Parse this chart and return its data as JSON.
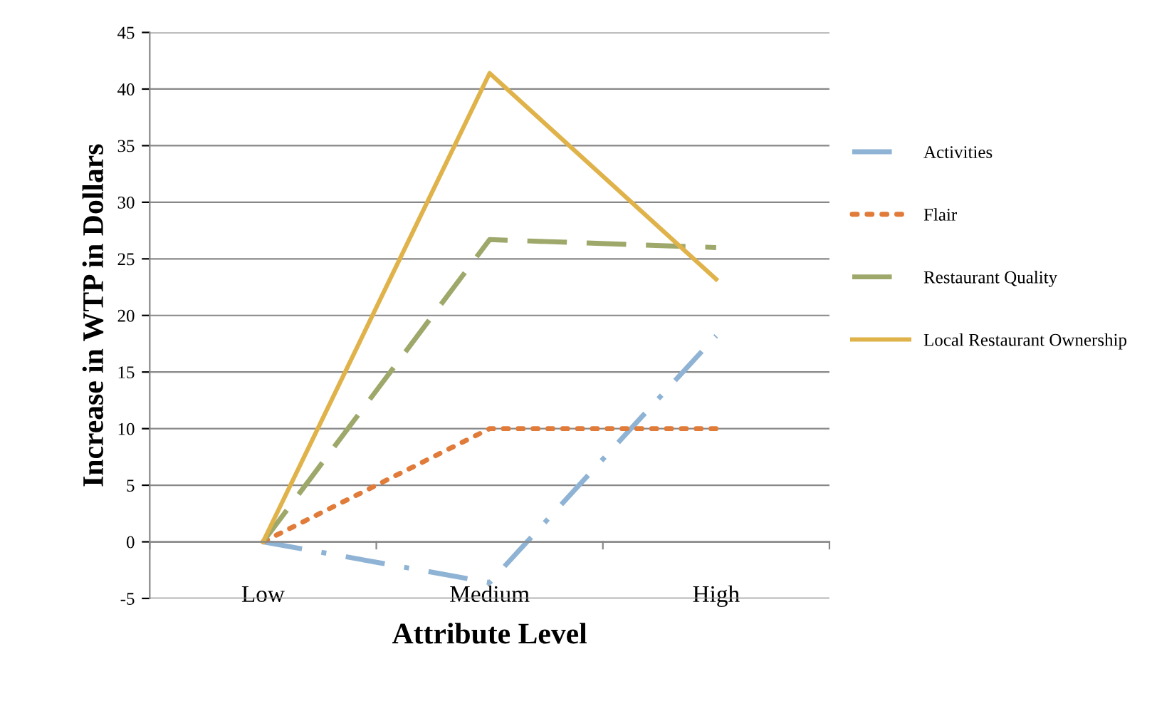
{
  "chart_data": {
    "type": "line",
    "xlabel": "Attribute Level",
    "ylabel": "Increase in WTP in Dollars",
    "categories": [
      "Low",
      "Medium",
      "High"
    ],
    "series": [
      {
        "name": "Activities",
        "color": "#8fb3d4",
        "line_style": "dashdot",
        "values": [
          0,
          -3.6,
          18.2
        ]
      },
      {
        "name": "Flair",
        "color": "#e07b39",
        "line_style": "dotted",
        "values": [
          0,
          10,
          10
        ]
      },
      {
        "name": "Restaurant Quality",
        "color": "#9ea86a",
        "line_style": "dashed",
        "values": [
          0,
          26.7,
          26
        ]
      },
      {
        "name": "Local Restaurant Ownership",
        "color": "#e0b24a",
        "line_style": "solid",
        "values": [
          0,
          41.4,
          23.2
        ]
      }
    ],
    "ylim": [
      -5,
      45
    ],
    "yticks": [
      -5,
      0,
      5,
      10,
      15,
      20,
      25,
      30,
      35,
      40,
      45
    ],
    "grid": "y",
    "legend": "right",
    "marker": "none"
  }
}
